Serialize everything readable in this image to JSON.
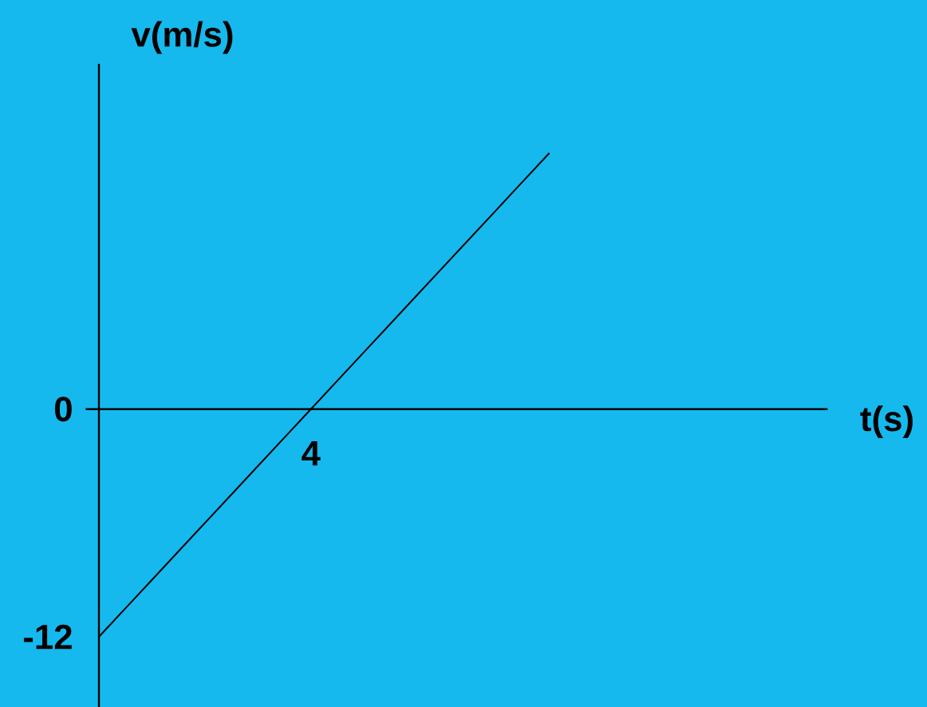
{
  "chart_data": {
    "type": "line",
    "xlabel": "t(s)",
    "ylabel": "v(m/s)",
    "categories": [
      null,
      null,
      null,
      null,
      null,
      null,
      null,
      null,
      "4",
      null,
      null,
      null,
      null,
      null,
      null,
      null,
      null,
      null,
      null,
      null,
      null,
      null,
      null,
      null,
      null,
      null,
      null,
      null
    ],
    "values": [
      -12,
      -10.5,
      -9,
      -7.5,
      -6,
      -4.5,
      -3,
      -1.5,
      0,
      1.5,
      3,
      4.5,
      6,
      7.5,
      9,
      10.5,
      12,
      13.5,
      null,
      null,
      null,
      null,
      null,
      null,
      null,
      null,
      null,
      null
    ],
    "color": "#000000",
    "line_style": "solid",
    "ylim": [
      -15.7,
      18.2
    ],
    "yticks": [
      -12,
      0
    ]
  }
}
